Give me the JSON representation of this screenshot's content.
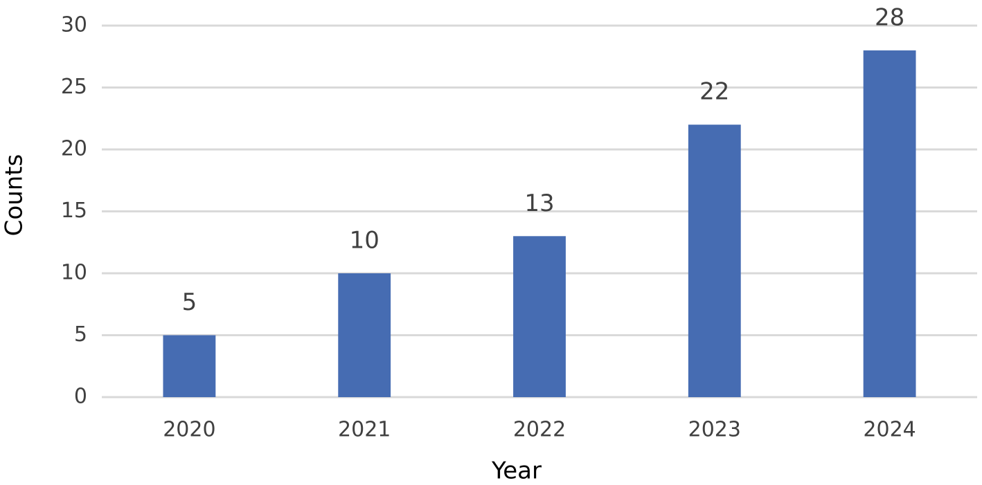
{
  "chart_data": {
    "type": "bar",
    "x_label": "Year",
    "y_label": "Counts",
    "categories": [
      "2020",
      "2021",
      "2022",
      "2023",
      "2024"
    ],
    "values": [
      5,
      10,
      13,
      22,
      28
    ],
    "color": "#466cb2",
    "ylim": [
      0,
      30
    ],
    "yticks": [
      0,
      5,
      10,
      15,
      20,
      25,
      30
    ],
    "grid": true,
    "data_labels": true
  }
}
